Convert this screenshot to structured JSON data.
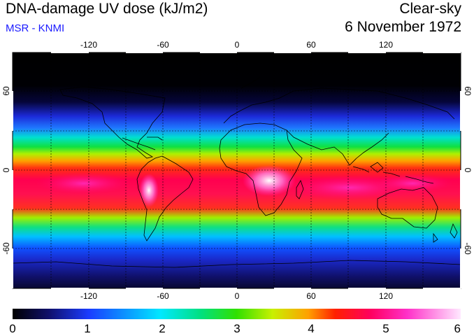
{
  "header": {
    "title": "DNA-damage UV dose (kJ/m2)",
    "subtitle": "MSR - KNMI",
    "sky_condition": "Clear-sky",
    "date": "6 November 1972"
  },
  "map": {
    "projection": "equirectangular",
    "lon_range": [
      -180,
      180
    ],
    "lat_range": [
      -90,
      90
    ],
    "lon_tick_labels": [
      "-120",
      "-60",
      "0",
      "60",
      "120"
    ],
    "lat_tick_labels": [
      "60",
      "0",
      "-60"
    ],
    "gridlines": true
  },
  "colorbar": {
    "tick_labels": [
      "0",
      "1",
      "2",
      "3",
      "4",
      "5",
      "6"
    ],
    "colors": [
      "#000000",
      "#10106a",
      "#1a3cff",
      "#00c8ff",
      "#00e080",
      "#30e000",
      "#c8f000",
      "#ffa000",
      "#ff2000",
      "#ff0060",
      "#ff30c8",
      "#ffe0ff"
    ]
  }
}
